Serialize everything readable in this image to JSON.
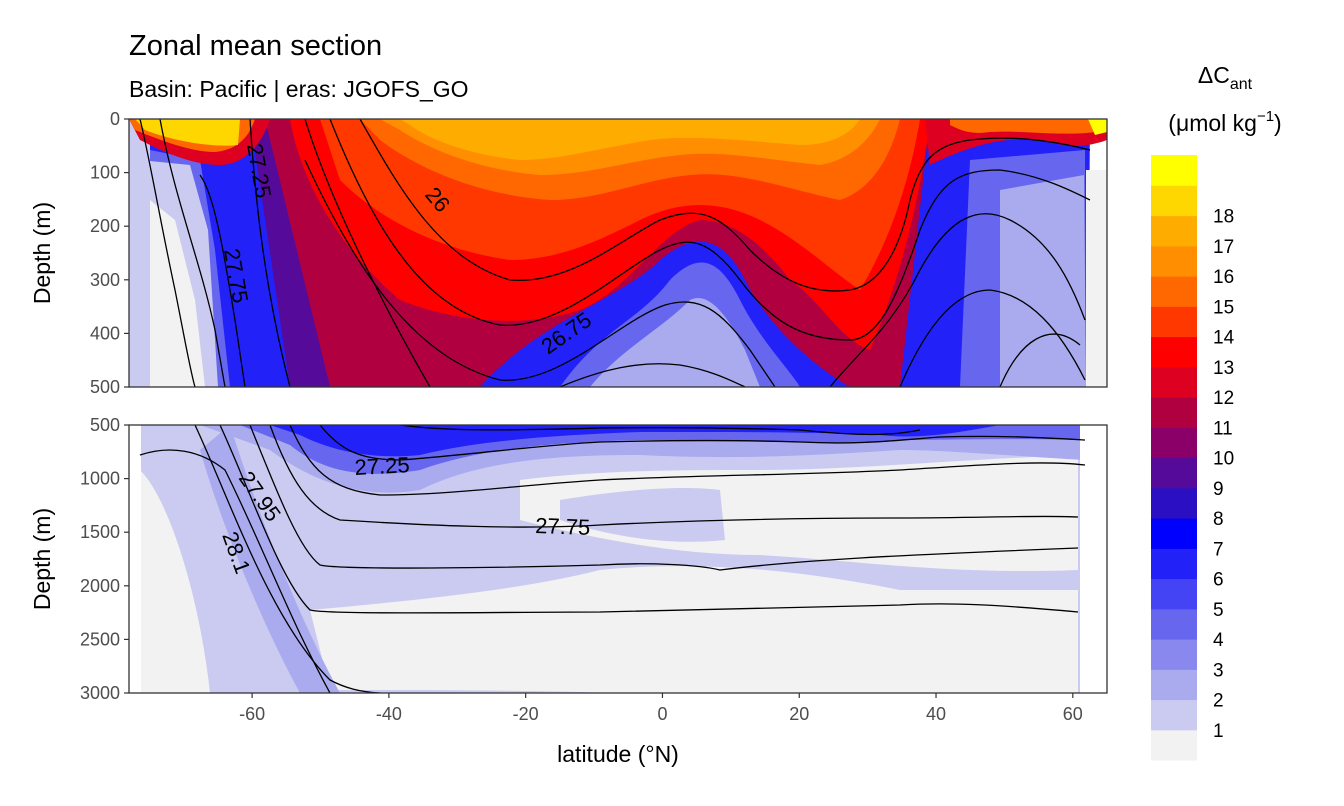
{
  "chart_data": {
    "type": "heatmap",
    "title": "Zonal mean section",
    "subtitle": "Basin: Pacific | eras: JGOFS_GO",
    "xlabel": "latitude (°N)",
    "ylabel": "Depth (m)",
    "xlim": [
      -78,
      65
    ],
    "x_ticks": [
      "-60",
      "-40",
      "-20",
      "0",
      "20",
      "40",
      "60"
    ],
    "panels": [
      {
        "name": "upper",
        "ylim": [
          0,
          500
        ],
        "y_ticks": [
          "0",
          "100",
          "200",
          "300",
          "400",
          "500"
        ],
        "contour_labels": [
          {
            "text": "27.25",
            "lat": -58,
            "depth": 80
          },
          {
            "text": "27.75",
            "lat": -63,
            "depth": 300
          },
          {
            "text": "26",
            "lat": -33,
            "depth": 155
          },
          {
            "text": "26.75",
            "lat": -14,
            "depth": 390
          }
        ]
      },
      {
        "name": "lower",
        "ylim": [
          500,
          3000
        ],
        "y_ticks": [
          "500",
          "1000",
          "1500",
          "2000",
          "2500",
          "3000"
        ],
        "contour_labels": [
          {
            "text": "27.25",
            "lat": -40,
            "depth": 900
          },
          {
            "text": "27.95",
            "lat": -60,
            "depth": 1300
          },
          {
            "text": "28.1",
            "lat": -64,
            "depth": 1720
          },
          {
            "text": "27.75",
            "lat": -13,
            "depth": 1460
          }
        ]
      }
    ],
    "legend": {
      "title": "ΔC",
      "title_subscript": "ant",
      "units": "(μmol kg",
      "units_superscript": "−1",
      "units_close": ")",
      "position": "right",
      "levels": [
        "1",
        "2",
        "3",
        "4",
        "5",
        "6",
        "7",
        "8",
        "9",
        "10",
        "11",
        "12",
        "13",
        "14",
        "15",
        "16",
        "17",
        "18"
      ],
      "colors": [
        "#f2f2f2",
        "#cbcbf1",
        "#aaaaef",
        "#8888ee",
        "#6666ef",
        "#4444f5",
        "#2222f8",
        "#0000ff",
        "#2a10c2",
        "#560a9a",
        "#8a0068",
        "#b10040",
        "#dd0020",
        "#ff0000",
        "#ff3800",
        "#ff6800",
        "#ff8f00",
        "#ffac00",
        "#ffd700",
        "#ffff00"
      ]
    }
  }
}
